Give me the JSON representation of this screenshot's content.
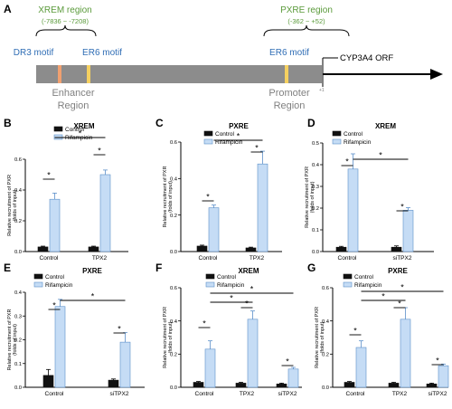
{
  "panel_a": {
    "letter": "A",
    "xrem_region": "XREM region",
    "xrem_range": "(-7836 ~ -7208)",
    "pxre_region": "PXRE region",
    "pxre_range": "(-362 ~ +52)",
    "dr3": "DR3 motif",
    "er6_a": "ER6 motif",
    "er6_b": "ER6 motif",
    "orf": "CYP3A4 ORF",
    "enhancer": "Enhancer",
    "enhancer2": "Region",
    "promoter": "Promoter",
    "promoter2": "Region",
    "plus1": "+1"
  },
  "colors": {
    "control": "#111111",
    "rifampicin": "#c5dcf5",
    "rifampicin_edge": "#5b8fc9",
    "gene_bar": "#8c8c8c",
    "dr3_box": "#f0a070",
    "er6_box": "#f5d060"
  },
  "chart_data": [
    {
      "panel": "B",
      "title": "XREM",
      "type": "bar",
      "categories": [
        "Control",
        "TPX2"
      ],
      "ylabel": "Relative recruitment of PXR (folds of input)",
      "ylim": [
        0,
        0.6
      ],
      "yticks": [
        "0.0",
        "0.2",
        "0.4",
        "0.6"
      ],
      "legend": [
        "Control",
        "Rifampicin"
      ],
      "series": [
        {
          "name": "Control",
          "values": [
            0.03,
            0.03
          ],
          "errors": [
            0.005,
            0.005
          ]
        },
        {
          "name": "Rifampicin",
          "values": [
            0.34,
            0.5
          ],
          "errors": [
            0.04,
            0.03
          ]
        }
      ],
      "stars": [
        "*",
        "*",
        "*"
      ]
    },
    {
      "panel": "C",
      "title": "PXRE",
      "type": "bar",
      "categories": [
        "Control",
        "TPX2"
      ],
      "ylabel": "Relative recruitment of PXR (folds of input)",
      "ylim": [
        0,
        0.6
      ],
      "yticks": [
        "0.0",
        "0.2",
        "0.4",
        "0.6"
      ],
      "legend": [
        "Control",
        "Rifampicin"
      ],
      "series": [
        {
          "name": "Control",
          "values": [
            0.03,
            0.02
          ],
          "errors": [
            0.005,
            0.004
          ]
        },
        {
          "name": "Rifampicin",
          "values": [
            0.24,
            0.48
          ],
          "errors": [
            0.015,
            0.07
          ]
        }
      ],
      "stars": [
        "*",
        "*",
        "*"
      ]
    },
    {
      "panel": "D",
      "title": "XREM",
      "type": "bar",
      "categories": [
        "Control",
        "siTPX2"
      ],
      "ylabel": "Relative recruitment of PXR (folds of input)",
      "ylim": [
        0,
        0.5
      ],
      "yticks": [
        "0.0",
        "0.1",
        "0.2",
        "0.3",
        "0.4",
        "0.5"
      ],
      "legend": [
        "Control",
        "Rifampicin"
      ],
      "series": [
        {
          "name": "Control",
          "values": [
            0.02,
            0.02
          ],
          "errors": [
            0.004,
            0.006
          ]
        },
        {
          "name": "Rifampicin",
          "values": [
            0.38,
            0.19
          ],
          "errors": [
            0.07,
            0.012
          ]
        }
      ],
      "stars": [
        "*",
        "*",
        "*"
      ]
    },
    {
      "panel": "E",
      "title": "PXRE",
      "type": "bar",
      "categories": [
        "Control",
        "siTPX2"
      ],
      "ylabel": "Relative recruitment of PXR (folds of input)",
      "ylim": [
        0,
        0.4
      ],
      "yticks": [
        "0.0",
        "0.1",
        "0.2",
        "0.3",
        "0.4"
      ],
      "legend": [
        "Control",
        "Rifampicin"
      ],
      "series": [
        {
          "name": "Control",
          "values": [
            0.05,
            0.03
          ],
          "errors": [
            0.025,
            0.005
          ]
        },
        {
          "name": "Rifampicin",
          "values": [
            0.34,
            0.19
          ],
          "errors": [
            0.03,
            0.04
          ]
        }
      ],
      "stars": [
        "*",
        "*",
        "*"
      ]
    },
    {
      "panel": "F",
      "title": "XREM",
      "type": "bar",
      "categories": [
        "Control",
        "TPX2",
        "siTPX2"
      ],
      "ylabel": "Relative recruitment of PXR (folds of input)",
      "ylim": [
        0,
        0.6
      ],
      "yticks": [
        "0.0",
        "0.2",
        "0.4",
        "0.6"
      ],
      "legend": [
        "Control",
        "Rifampicin"
      ],
      "series": [
        {
          "name": "Control",
          "values": [
            0.03,
            0.025,
            0.02
          ],
          "errors": [
            0.005,
            0.005,
            0.005
          ]
        },
        {
          "name": "Rifampicin",
          "values": [
            0.23,
            0.41,
            0.11
          ],
          "errors": [
            0.05,
            0.05,
            0.01
          ]
        }
      ],
      "stars": [
        "*",
        "*",
        "*",
        "*",
        "*"
      ]
    },
    {
      "panel": "G",
      "title": "PXRE",
      "type": "bar",
      "categories": [
        "Control",
        "TPX2",
        "siTPX2"
      ],
      "ylabel": "Relative recruitment of PXR (folds of input)",
      "ylim": [
        0,
        0.6
      ],
      "yticks": [
        "0.0",
        "0.2",
        "0.4",
        "0.6"
      ],
      "legend": [
        "Control",
        "Rifampicin"
      ],
      "series": [
        {
          "name": "Control",
          "values": [
            0.03,
            0.025,
            0.02
          ],
          "errors": [
            0.005,
            0.005,
            0.005
          ]
        },
        {
          "name": "Rifampicin",
          "values": [
            0.24,
            0.41,
            0.13
          ],
          "errors": [
            0.04,
            0.07,
            0.01
          ]
        }
      ],
      "stars": [
        "*",
        "*",
        "*",
        "*",
        "*"
      ]
    }
  ]
}
